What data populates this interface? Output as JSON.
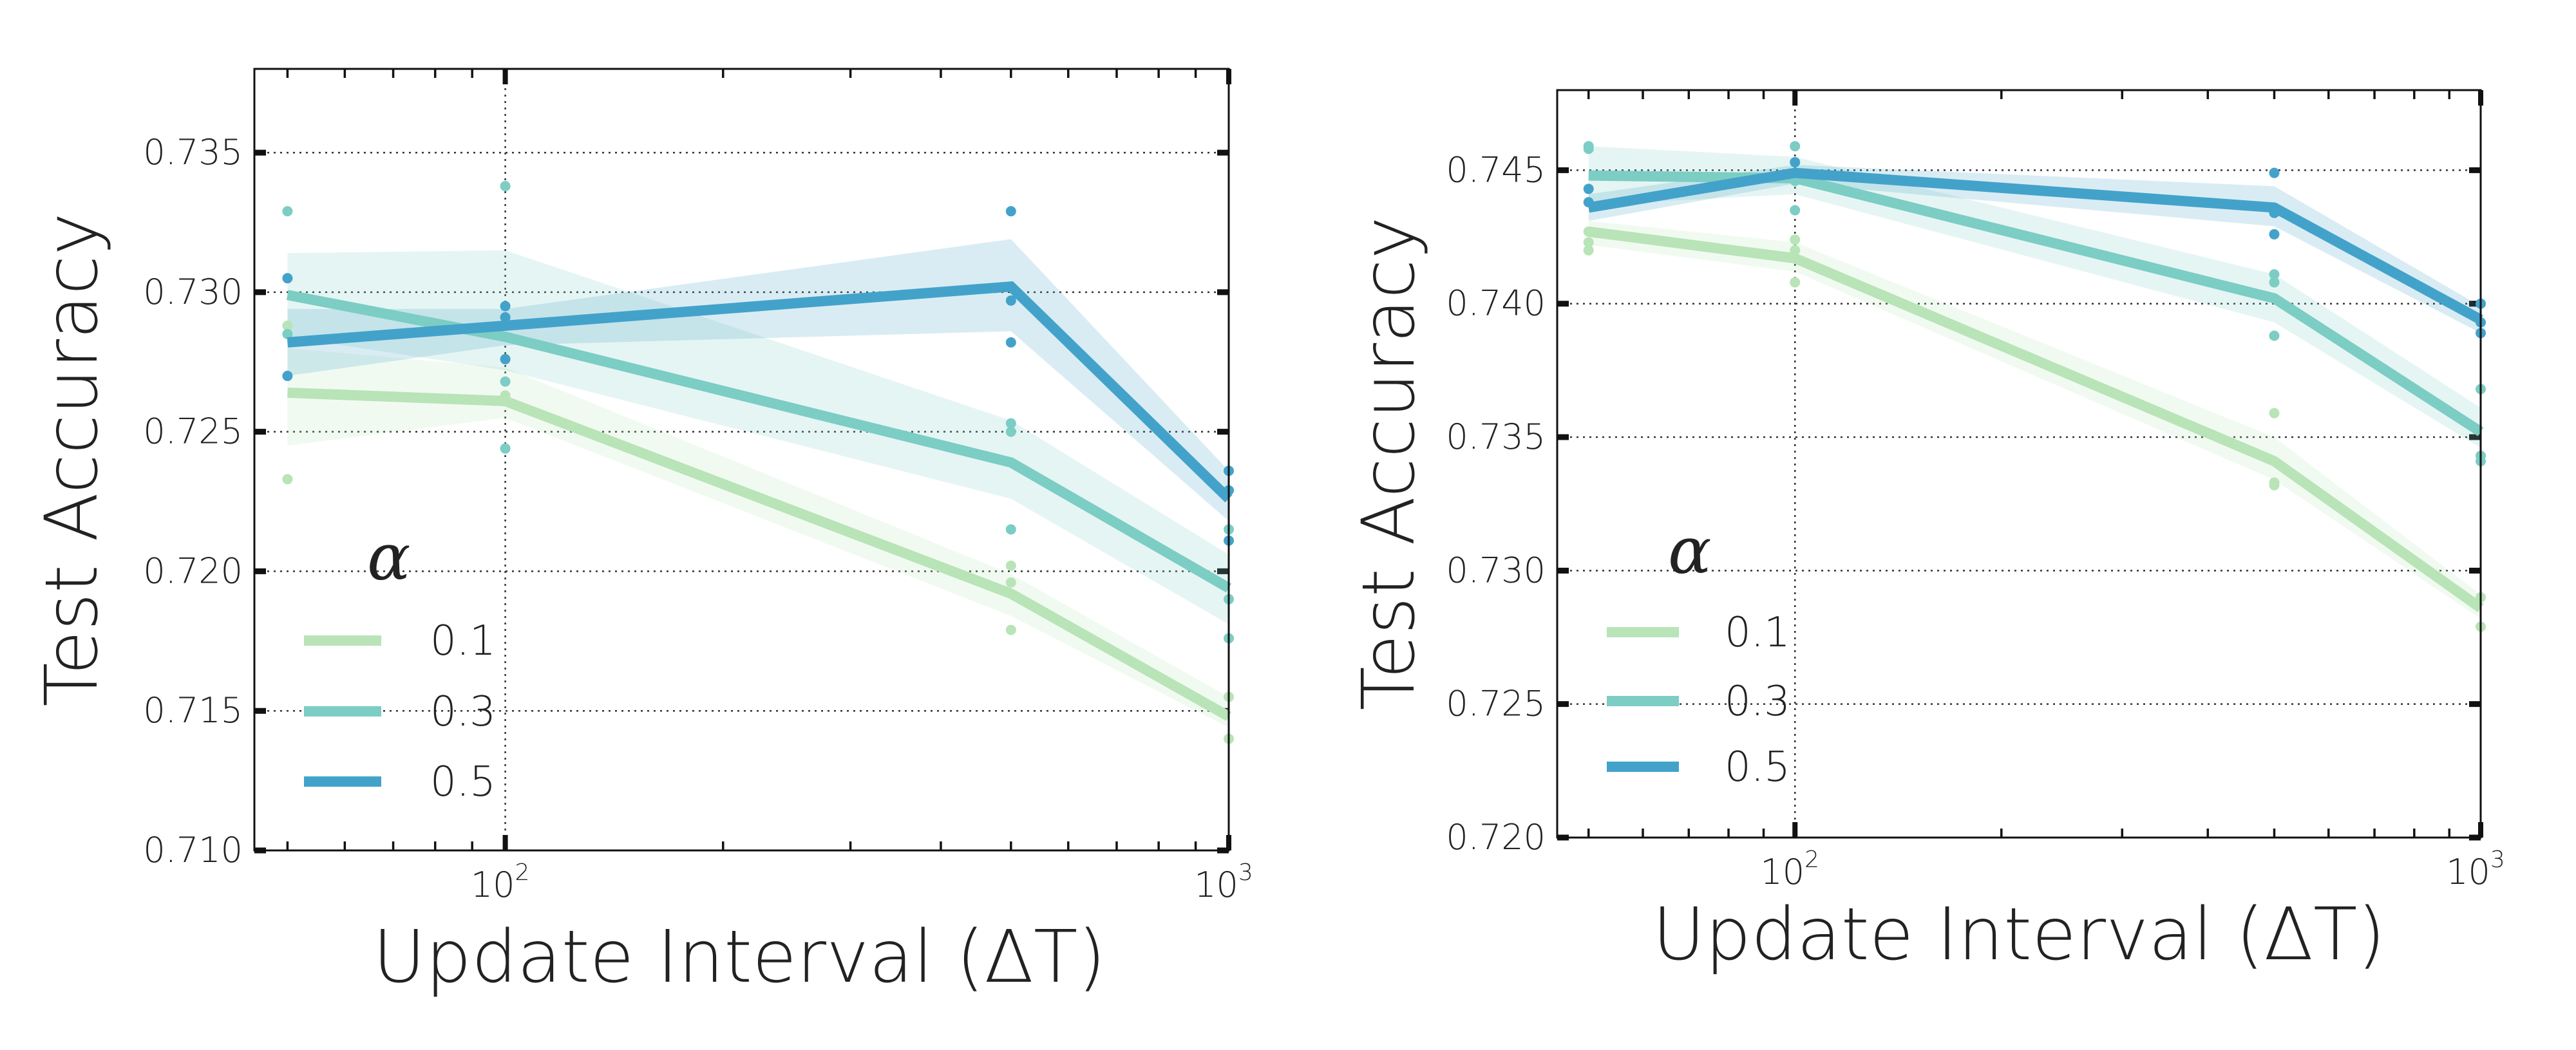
{
  "colors": {
    "0.1": "#b8e4b8",
    "0.3": "#7ccdc4",
    "0.5": "#43a2ca"
  },
  "chart_data": [
    {
      "type": "line",
      "xscale": "log",
      "xlim": [
        45,
        1000
      ],
      "ylim": [
        0.71,
        0.738
      ],
      "grid": true,
      "xlabel": "Update Interval (ΔT)",
      "ylabel": "Test Accuracy",
      "yticks": [
        "0.710",
        "0.715",
        "0.720",
        "0.725",
        "0.730",
        "0.735"
      ],
      "xticks": [
        {
          "value": 100,
          "base": "10",
          "exp": "2"
        },
        {
          "value": 1000,
          "base": "10",
          "exp": "3"
        }
      ],
      "legend": {
        "title": "α",
        "placement": "lower-left"
      },
      "x": [
        50,
        100,
        500,
        1000
      ],
      "series": [
        {
          "name": "0.1",
          "color": "#b8e4b8",
          "values": [
            0.7264,
            0.7261,
            0.7192,
            0.7148
          ],
          "band_low": [
            0.7245,
            0.7255,
            0.7184,
            0.7144
          ],
          "band_high": [
            0.728,
            0.7273,
            0.7199,
            0.7155
          ],
          "points": [
            [
              50,
              0.7288
            ],
            [
              50,
              0.7233
            ],
            [
              100,
              0.7263
            ],
            [
              100,
              0.7244
            ],
            [
              500,
              0.7202
            ],
            [
              500,
              0.7196
            ],
            [
              500,
              0.7179
            ],
            [
              1000,
              0.7155
            ],
            [
              1000,
              0.714
            ]
          ]
        },
        {
          "name": "0.3",
          "color": "#7ccdc4",
          "values": [
            0.7299,
            0.7284,
            0.7239,
            0.7194
          ],
          "band_low": [
            0.7284,
            0.7272,
            0.7226,
            0.7181
          ],
          "band_high": [
            0.7314,
            0.7315,
            0.7254,
            0.7206
          ],
          "points": [
            [
              50,
              0.7329
            ],
            [
              50,
              0.7285
            ],
            [
              100,
              0.7338
            ],
            [
              100,
              0.7268
            ],
            [
              100,
              0.7244
            ],
            [
              500,
              0.7253
            ],
            [
              500,
              0.725
            ],
            [
              500,
              0.7215
            ],
            [
              1000,
              0.7215
            ],
            [
              1000,
              0.719
            ],
            [
              1000,
              0.7176
            ]
          ]
        },
        {
          "name": "0.5",
          "color": "#43a2ca",
          "values": [
            0.7282,
            0.7288,
            0.7302,
            0.7226
          ],
          "band_low": [
            0.727,
            0.7281,
            0.7286,
            0.7218
          ],
          "band_high": [
            0.7294,
            0.7294,
            0.7319,
            0.7236
          ],
          "points": [
            [
              50,
              0.7305
            ],
            [
              50,
              0.727
            ],
            [
              100,
              0.7295
            ],
            [
              100,
              0.7291
            ],
            [
              100,
              0.7276
            ],
            [
              500,
              0.7329
            ],
            [
              500,
              0.7297
            ],
            [
              500,
              0.7282
            ],
            [
              1000,
              0.7236
            ],
            [
              1000,
              0.7229
            ],
            [
              1000,
              0.7211
            ]
          ]
        }
      ]
    },
    {
      "type": "line",
      "xscale": "log",
      "xlim": [
        45,
        1000
      ],
      "ylim": [
        0.72,
        0.748
      ],
      "grid": true,
      "xlabel": "Update Interval (ΔT)",
      "ylabel": "Test Accuracy",
      "yticks": [
        "0.720",
        "0.725",
        "0.730",
        "0.735",
        "0.740",
        "0.745"
      ],
      "xticks": [
        {
          "value": 100,
          "base": "10",
          "exp": "2"
        },
        {
          "value": 1000,
          "base": "10",
          "exp": "3"
        }
      ],
      "legend": {
        "title": "α",
        "placement": "lower-left"
      },
      "x": [
        50,
        100,
        500,
        1000
      ],
      "series": [
        {
          "name": "0.1",
          "color": "#b8e4b8",
          "values": [
            0.7427,
            0.7417,
            0.7341,
            0.7286
          ],
          "band_low": [
            0.7422,
            0.7412,
            0.7334,
            0.7282
          ],
          "band_high": [
            0.7431,
            0.7423,
            0.735,
            0.7291
          ],
          "points": [
            [
              50,
              0.7427
            ],
            [
              50,
              0.7423
            ],
            [
              50,
              0.742
            ],
            [
              100,
              0.7424
            ],
            [
              100,
              0.742
            ],
            [
              100,
              0.7408
            ],
            [
              500,
              0.7359
            ],
            [
              500,
              0.7333
            ],
            [
              500,
              0.7332
            ],
            [
              1000,
              0.729
            ],
            [
              1000,
              0.7279
            ]
          ]
        },
        {
          "name": "0.3",
          "color": "#7ccdc4",
          "values": [
            0.7448,
            0.7447,
            0.7402,
            0.7352
          ],
          "band_low": [
            0.7437,
            0.7441,
            0.7393,
            0.7346
          ],
          "band_high": [
            0.7459,
            0.7455,
            0.7411,
            0.7361
          ],
          "points": [
            [
              50,
              0.7459
            ],
            [
              50,
              0.7458
            ],
            [
              100,
              0.7459
            ],
            [
              100,
              0.7446
            ],
            [
              100,
              0.7435
            ],
            [
              500,
              0.7411
            ],
            [
              500,
              0.7408
            ],
            [
              500,
              0.7388
            ],
            [
              1000,
              0.7368
            ],
            [
              1000,
              0.7343
            ],
            [
              1000,
              0.7341
            ]
          ]
        },
        {
          "name": "0.5",
          "color": "#43a2ca",
          "values": [
            0.7436,
            0.7449,
            0.7436,
            0.7394
          ],
          "band_low": [
            0.7431,
            0.7445,
            0.7429,
            0.7389
          ],
          "band_high": [
            0.7441,
            0.7452,
            0.7444,
            0.7399
          ],
          "points": [
            [
              50,
              0.7443
            ],
            [
              50,
              0.7438
            ],
            [
              100,
              0.7453
            ],
            [
              500,
              0.7449
            ],
            [
              500,
              0.7434
            ],
            [
              500,
              0.7426
            ],
            [
              1000,
              0.74
            ],
            [
              1000,
              0.7393
            ],
            [
              1000,
              0.7389
            ]
          ]
        }
      ]
    }
  ]
}
